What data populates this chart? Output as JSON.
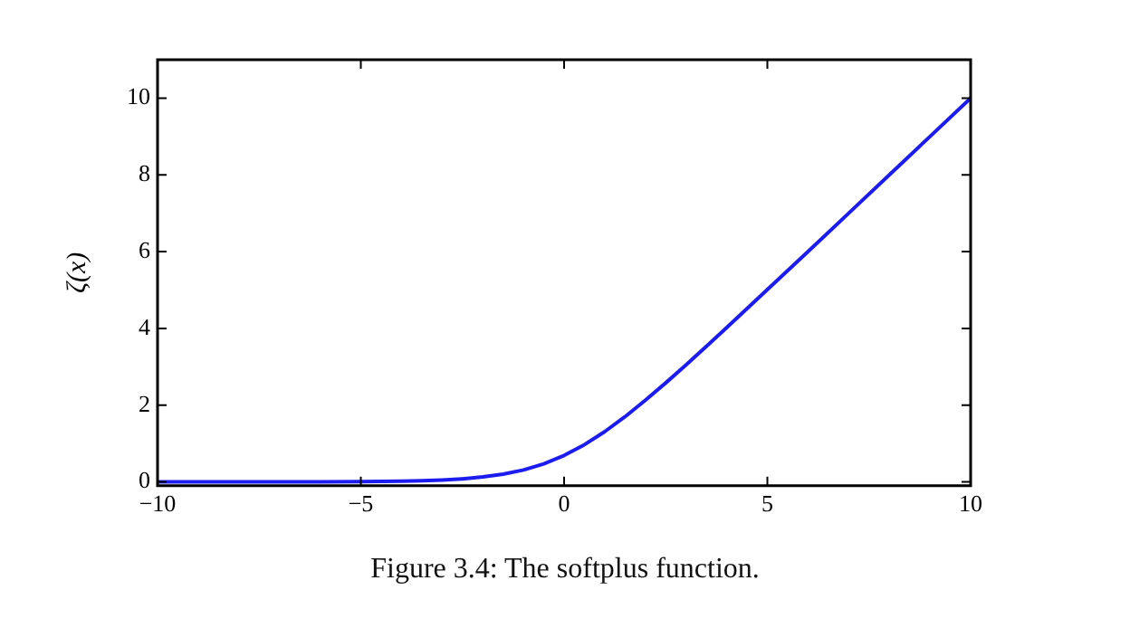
{
  "chart_data": {
    "type": "line",
    "ylabel": "ζ(x)",
    "annotations": [
      "Figure 3.4: The softplus function."
    ],
    "x": [
      -10,
      -9,
      -8,
      -7,
      -6,
      -5,
      -4,
      -3.5,
      -3,
      -2.5,
      -2,
      -1.5,
      -1,
      -0.5,
      0,
      0.5,
      1,
      1.5,
      2,
      2.5,
      3,
      3.5,
      4,
      5,
      6,
      7,
      8,
      9,
      10
    ],
    "series": [
      {
        "color": "#1c1cf0",
        "values": [
          0,
          0,
          0,
          0,
          0,
          0.01,
          0.02,
          0.03,
          0.05,
          0.08,
          0.13,
          0.2,
          0.31,
          0.47,
          0.69,
          0.97,
          1.31,
          1.7,
          2.13,
          2.58,
          3.05,
          3.53,
          4.02,
          5.01,
          6,
          7,
          8,
          9,
          10
        ]
      }
    ],
    "xlim": [
      -10,
      10
    ],
    "xticks": [
      -10,
      -5,
      0,
      5,
      10
    ],
    "ylim": [
      -0.1,
      11
    ],
    "yticks": [
      0,
      2,
      4,
      6,
      8,
      10
    ],
    "grid": false,
    "legend": false,
    "marker": "none",
    "line_style": "solid"
  }
}
